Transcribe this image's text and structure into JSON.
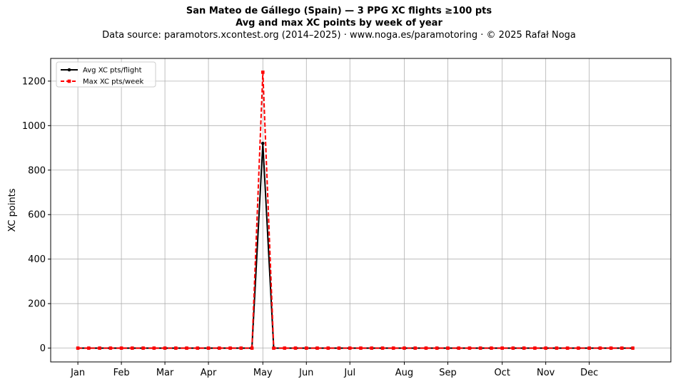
{
  "header": {
    "title": "San Mateo de Gállego (Spain)  —  3 PPG XC flights ≥100 pts",
    "subtitle": "Avg and max XC points by week of year",
    "source": "Data source: paramotors.xcontest.org (2014–2025)  ·  www.noga.es/paramotoring  ·  © 2025 Rafał Noga"
  },
  "chart_data": {
    "type": "line",
    "title": "San Mateo de Gállego (Spain)  —  3 PPG XC flights ≥100 pts",
    "subtitle": "Avg and max XC points by week of year",
    "xlabel": "",
    "ylabel": "XC points",
    "x_ticks": [
      {
        "week": 1,
        "label": "Jan"
      },
      {
        "week": 5,
        "label": "Feb"
      },
      {
        "week": 9,
        "label": "Mar"
      },
      {
        "week": 13,
        "label": "Apr"
      },
      {
        "week": 18,
        "label": "May"
      },
      {
        "week": 22,
        "label": "Jun"
      },
      {
        "week": 26,
        "label": "Jul"
      },
      {
        "week": 31,
        "label": "Aug"
      },
      {
        "week": 35,
        "label": "Sep"
      },
      {
        "week": 40,
        "label": "Oct"
      },
      {
        "week": 44,
        "label": "Nov"
      },
      {
        "week": 48,
        "label": "Dec"
      }
    ],
    "y_ticks": [
      0,
      200,
      400,
      600,
      800,
      1000,
      1200
    ],
    "xlim": [
      -1.5,
      55.5
    ],
    "ylim": [
      -62,
      1302
    ],
    "grid": true,
    "legend_position": "top-left",
    "x": [
      1,
      2,
      3,
      4,
      5,
      6,
      7,
      8,
      9,
      10,
      11,
      12,
      13,
      14,
      15,
      16,
      17,
      18,
      19,
      20,
      21,
      22,
      23,
      24,
      25,
      26,
      27,
      28,
      29,
      30,
      31,
      32,
      33,
      34,
      35,
      36,
      37,
      38,
      39,
      40,
      41,
      42,
      43,
      44,
      45,
      46,
      47,
      48,
      49,
      50,
      51,
      52
    ],
    "series": [
      {
        "name": "Avg XC pts/flight",
        "color": "#000000",
        "style": "solid",
        "marker": "circle",
        "values": [
          0,
          0,
          0,
          0,
          0,
          0,
          0,
          0,
          0,
          0,
          0,
          0,
          0,
          0,
          0,
          0,
          0,
          920,
          0,
          0,
          0,
          0,
          0,
          0,
          0,
          0,
          0,
          0,
          0,
          0,
          0,
          0,
          0,
          0,
          0,
          0,
          0,
          0,
          0,
          0,
          0,
          0,
          0,
          0,
          0,
          0,
          0,
          0,
          0,
          0,
          0,
          0
        ]
      },
      {
        "name": "Max XC pts/week",
        "color": "#ff0000",
        "style": "dashed",
        "marker": "square",
        "values": [
          0,
          0,
          0,
          0,
          0,
          0,
          0,
          0,
          0,
          0,
          0,
          0,
          0,
          0,
          0,
          0,
          0,
          1240,
          0,
          0,
          0,
          0,
          0,
          0,
          0,
          0,
          0,
          0,
          0,
          0,
          0,
          0,
          0,
          0,
          0,
          0,
          0,
          0,
          0,
          0,
          0,
          0,
          0,
          0,
          0,
          0,
          0,
          0,
          0,
          0,
          0,
          0
        ]
      }
    ]
  }
}
